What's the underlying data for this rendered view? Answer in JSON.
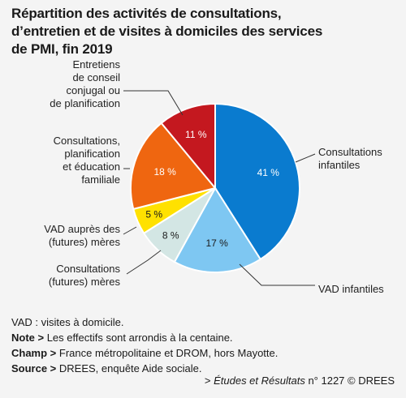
{
  "title_lines": [
    "Répartition des activités de consultations,",
    "d’entretien et de visites à domiciles des services",
    "de PMI, fin 2019"
  ],
  "chart_data": {
    "type": "pie",
    "title": "Répartition des activités de consultations, d’entretien et de visites à domiciles des services de PMI, fin 2019",
    "unit": "%",
    "slices": [
      {
        "label": "Consultations infantiles",
        "label_lines": [
          "Consultations",
          "infantiles"
        ],
        "value": 41,
        "value_label": "41 %",
        "color": "#0a7bcf",
        "text_color": "#ffffff"
      },
      {
        "label": "VAD infantiles",
        "label_lines": [
          "VAD infantiles"
        ],
        "value": 17,
        "value_label": "17 %",
        "color": "#7ec7f2",
        "text_color": "#1a1a1a"
      },
      {
        "label": "Consultations (futures) mères",
        "label_lines": [
          "Consultations",
          "(futures) mères"
        ],
        "value": 8,
        "value_label": "8 %",
        "color": "#d3e6e4",
        "text_color": "#1a1a1a"
      },
      {
        "label": "VAD auprès des (futures) mères",
        "label_lines": [
          "VAD auprès des",
          "(futures) mères"
        ],
        "value": 5,
        "value_label": "5 %",
        "color": "#ffe100",
        "text_color": "#1a1a1a"
      },
      {
        "label": "Consultations, planification et éducation familiale",
        "label_lines": [
          "Consultations,",
          "planification",
          "et éducation",
          "familiale"
        ],
        "value": 18,
        "value_label": "18 %",
        "color": "#ef6610",
        "text_color": "#ffffff"
      },
      {
        "label": "Entretiens de conseil conjugal ou de planification",
        "label_lines": [
          "Entretiens",
          "de conseil",
          "conjugal ou",
          "de planification"
        ],
        "value": 11,
        "value_label": "11 %",
        "color": "#c4181f",
        "text_color": "#ffffff"
      }
    ]
  },
  "notes": {
    "vad": "VAD : visites à domicile.",
    "note_key": "Note >",
    "note_text": " Les effectifs sont arrondis à la centaine.",
    "champ_key": "Champ >",
    "champ_text": " France métropolitaine et DROM, hors Mayotte.",
    "source_key": "Source >",
    "source_text": " DREES, enquête Aide sociale."
  },
  "reference": {
    "prefix": "> ",
    "publication": "Études et Résultats",
    "suffix": " n° 1227 © DREES"
  }
}
